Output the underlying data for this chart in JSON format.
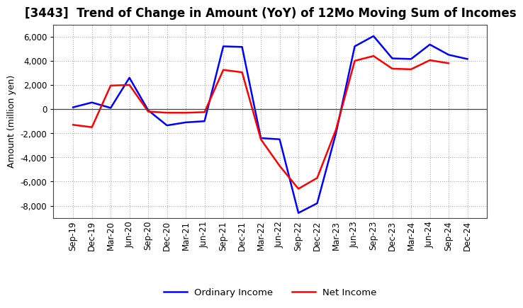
{
  "title": "[3443]  Trend of Change in Amount (YoY) of 12Mo Moving Sum of Incomes",
  "ylabel": "Amount (million yen)",
  "x_labels": [
    "Sep-19",
    "Dec-19",
    "Mar-20",
    "Jun-20",
    "Sep-20",
    "Dec-20",
    "Mar-21",
    "Jun-21",
    "Sep-21",
    "Dec-21",
    "Mar-22",
    "Jun-22",
    "Sep-22",
    "Dec-22",
    "Mar-23",
    "Jun-23",
    "Sep-23",
    "Dec-23",
    "Mar-24",
    "Jun-24",
    "Sep-24",
    "Dec-24"
  ],
  "ordinary_income": [
    150,
    550,
    100,
    2600,
    -100,
    -1350,
    -1100,
    -1000,
    5200,
    5150,
    -2400,
    -2500,
    -8600,
    -7800,
    -2000,
    5200,
    6050,
    4200,
    4150,
    5350,
    4500,
    4150
  ],
  "net_income": [
    -1300,
    -1500,
    1950,
    2000,
    -200,
    -300,
    -300,
    -250,
    3250,
    3050,
    -2500,
    -4700,
    -6600,
    -5700,
    -1700,
    4000,
    4400,
    3350,
    3300,
    4050,
    3800,
    null
  ],
  "ordinary_color": "#0000FF",
  "net_color": "#FF0000",
  "background_color": "#FFFFFF",
  "grid_color": "#999999",
  "ylim": [
    -9000,
    7000
  ],
  "yticks": [
    -8000,
    -6000,
    -4000,
    -2000,
    0,
    2000,
    4000,
    6000
  ],
  "legend_labels": [
    "Ordinary Income",
    "Net Income"
  ],
  "title_fontsize": 12,
  "axis_fontsize": 9,
  "tick_fontsize": 8.5
}
